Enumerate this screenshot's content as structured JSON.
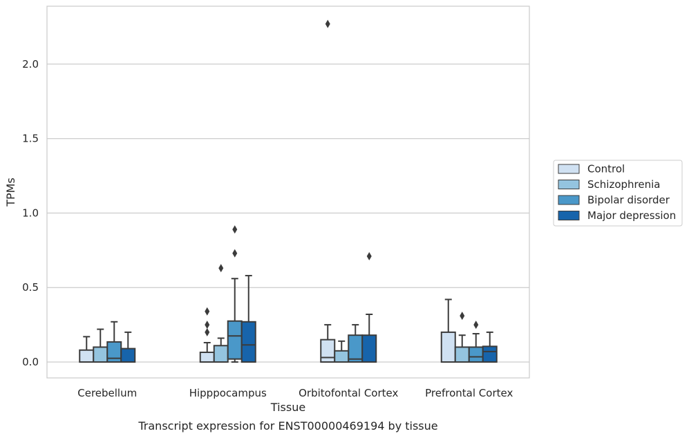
{
  "chart_data": {
    "type": "boxplot",
    "caption": "Transcript expression for ENST00000469194 by tissue",
    "xlabel": "Tissue",
    "ylabel": "TPMs",
    "ylim": [
      -0.11,
      2.39
    ],
    "yticks": [
      0.0,
      0.5,
      1.0,
      1.5,
      2.0
    ],
    "ytick_labels": [
      "0.0",
      "0.5",
      "1.0",
      "1.5",
      "2.0"
    ],
    "grid": true,
    "legend_position": "right",
    "categories": [
      "Cerebellum",
      "Hipppocampus",
      "Orbitofontal Cortex",
      "Prefrontal Cortex"
    ],
    "series": [
      {
        "name": "Control",
        "color": "#d0e1f2",
        "boxes": [
          {
            "whislo": 0.0,
            "q1": 0.0,
            "med": 0.0,
            "q3": 0.08,
            "whishi": 0.17,
            "fliers": []
          },
          {
            "whislo": 0.0,
            "q1": 0.0,
            "med": 0.0,
            "q3": 0.065,
            "whishi": 0.13,
            "fliers": [
              0.2,
              0.25,
              0.34
            ]
          },
          {
            "whislo": 0.0,
            "q1": 0.0,
            "med": 0.03,
            "q3": 0.15,
            "whishi": 0.25,
            "fliers": [
              2.27
            ]
          },
          {
            "whislo": 0.0,
            "q1": 0.0,
            "med": 0.0,
            "q3": 0.2,
            "whishi": 0.42,
            "fliers": []
          }
        ]
      },
      {
        "name": "Schizophrenia",
        "color": "#94c4df",
        "boxes": [
          {
            "whislo": 0.0,
            "q1": 0.0,
            "med": 0.0,
            "q3": 0.1,
            "whishi": 0.22,
            "fliers": []
          },
          {
            "whislo": 0.0,
            "q1": 0.0,
            "med": 0.0,
            "q3": 0.11,
            "whishi": 0.16,
            "fliers": [
              0.63
            ]
          },
          {
            "whislo": 0.0,
            "q1": 0.0,
            "med": 0.0,
            "q3": 0.075,
            "whishi": 0.14,
            "fliers": []
          },
          {
            "whislo": 0.0,
            "q1": 0.0,
            "med": 0.0,
            "q3": 0.1,
            "whishi": 0.18,
            "fliers": [
              0.31
            ]
          }
        ]
      },
      {
        "name": "Bipolar disorder",
        "color": "#4a98c9",
        "boxes": [
          {
            "whislo": 0.0,
            "q1": 0.0,
            "med": 0.025,
            "q3": 0.135,
            "whishi": 0.27,
            "fliers": []
          },
          {
            "whislo": 0.0,
            "q1": 0.02,
            "med": 0.175,
            "q3": 0.275,
            "whishi": 0.56,
            "fliers": [
              0.73,
              0.89
            ]
          },
          {
            "whislo": 0.0,
            "q1": 0.0,
            "med": 0.02,
            "q3": 0.18,
            "whishi": 0.25,
            "fliers": []
          },
          {
            "whislo": 0.0,
            "q1": 0.0,
            "med": 0.035,
            "q3": 0.1,
            "whishi": 0.19,
            "fliers": [
              0.25
            ]
          }
        ]
      },
      {
        "name": "Major depression",
        "color": "#1764ab",
        "boxes": [
          {
            "whislo": 0.0,
            "q1": 0.0,
            "med": 0.0,
            "q3": 0.09,
            "whishi": 0.2,
            "fliers": []
          },
          {
            "whislo": 0.0,
            "q1": 0.0,
            "med": 0.115,
            "q3": 0.27,
            "whishi": 0.58,
            "fliers": []
          },
          {
            "whislo": 0.0,
            "q1": 0.0,
            "med": 0.0,
            "q3": 0.18,
            "whishi": 0.32,
            "fliers": [
              0.71
            ]
          },
          {
            "whislo": 0.0,
            "q1": 0.0,
            "med": 0.07,
            "q3": 0.105,
            "whishi": 0.2,
            "fliers": []
          }
        ]
      }
    ],
    "colors": {
      "grid": "#cccccc",
      "spine": "#cccccc",
      "line": "#3b3b3b"
    }
  }
}
